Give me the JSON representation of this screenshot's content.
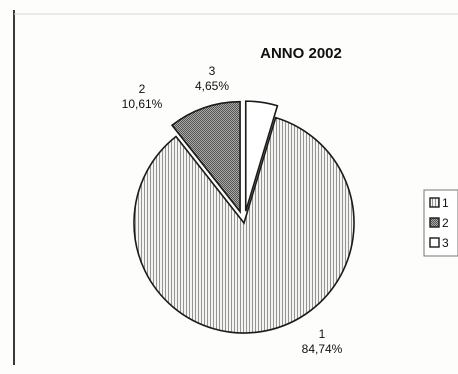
{
  "chart_data": {
    "type": "pie",
    "title": "ANNO 2002",
    "categories": [
      "1",
      "2",
      "3"
    ],
    "values": [
      84.74,
      10.61,
      4.65
    ],
    "data_labels": [
      {
        "category": "1",
        "value": "84,74%"
      },
      {
        "category": "2",
        "value": "10,61%"
      },
      {
        "category": "3",
        "value": "4,65%"
      }
    ],
    "exploded": [
      "2",
      "3"
    ],
    "start_slice": "3",
    "legend": {
      "placement": "right",
      "entries": [
        "1",
        "2",
        "3"
      ]
    },
    "fills": {
      "1": {
        "pattern": "vertical-lines",
        "base": "#f4f4f1",
        "line": "#8a8a8a"
      },
      "2": {
        "pattern": "crosshatch-dense",
        "base": "#a9a9a6",
        "line": "#555555"
      },
      "3": {
        "pattern": "solid",
        "base": "#ffffff",
        "line": "#ffffff"
      }
    }
  }
}
